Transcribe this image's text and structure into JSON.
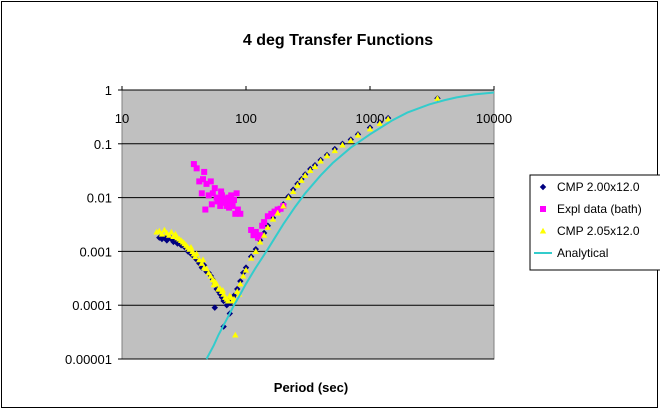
{
  "chart_data": {
    "type": "scatter",
    "title": "4 deg Transfer Functions",
    "xlabel": "Period (sec)",
    "ylabel": "",
    "x_scale": "log",
    "y_scale": "log",
    "xlim": [
      10,
      10000
    ],
    "ylim": [
      1e-05,
      1
    ],
    "x_ticks": [
      "10",
      "100",
      "1000",
      "10000"
    ],
    "y_ticks": [
      "1",
      "0.1",
      "0.01",
      "0.001",
      "0.0001",
      "0.00001"
    ],
    "grid": "horizontal major",
    "legend_position": "right",
    "colors": {
      "plot_background": "#c0c0c0",
      "grid": "#000000",
      "series_cmp_200": "#000080",
      "series_expl": "#ff00ff",
      "series_cmp_205": "#ffff00",
      "series_analytical": "#33cccc"
    },
    "series": [
      {
        "name": "CMP 2.00x12.0",
        "marker": "diamond",
        "color": "#000080",
        "x": [
          20,
          21,
          22,
          23,
          24,
          25,
          26,
          27,
          28,
          29,
          30,
          32,
          34,
          36,
          38,
          40,
          42,
          44,
          46,
          48,
          50,
          52,
          54,
          56,
          58,
          60,
          62,
          64,
          66,
          68,
          70,
          72,
          75,
          78,
          80,
          85,
          90,
          95,
          100,
          110,
          120,
          130,
          140,
          150,
          165,
          180,
          200,
          220,
          240,
          260,
          280,
          300,
          330,
          360,
          400,
          450,
          520,
          600,
          700,
          800,
          1000,
          1200,
          1400,
          3500,
          66,
          74,
          56
        ],
        "y": [
          0.0018,
          0.0017,
          0.0018,
          0.0016,
          0.0019,
          0.0017,
          0.0015,
          0.0016,
          0.0014,
          0.0015,
          0.0013,
          0.0012,
          0.001,
          0.0009,
          0.0008,
          0.0007,
          0.0006,
          0.0005,
          0.00055,
          0.00042,
          0.0004,
          0.00035,
          0.0003,
          0.00025,
          0.0002,
          0.00018,
          0.00016,
          0.00014,
          0.00012,
          0.00013,
          0.0001,
          0.00012,
          0.00011,
          0.00014,
          0.00015,
          0.0002,
          0.00028,
          0.0004,
          0.0005,
          0.0008,
          0.0011,
          0.0016,
          0.0022,
          0.003,
          0.0042,
          0.0055,
          0.0075,
          0.0105,
          0.014,
          0.018,
          0.022,
          0.027,
          0.034,
          0.04,
          0.05,
          0.062,
          0.08,
          0.1,
          0.12,
          0.15,
          0.2,
          0.25,
          0.3,
          0.7,
          4e-05,
          7e-05,
          9e-05
        ]
      },
      {
        "name": "Expl data (bath)",
        "marker": "square",
        "color": "#ff00ff",
        "x": [
          38,
          40,
          42,
          44,
          45,
          46,
          48,
          50,
          52,
          54,
          56,
          58,
          60,
          62,
          64,
          66,
          68,
          70,
          72,
          74,
          76,
          78,
          80,
          82,
          84,
          86,
          90,
          110,
          115,
          120,
          125,
          130,
          135,
          140,
          150,
          160,
          170,
          180,
          190,
          200,
          47,
          53,
          59,
          63,
          67,
          73
        ],
        "y": [
          0.042,
          0.035,
          0.02,
          0.012,
          0.022,
          0.03,
          0.018,
          0.011,
          0.02,
          0.012,
          0.015,
          0.01,
          0.009,
          0.007,
          0.011,
          0.008,
          0.009,
          0.007,
          0.01,
          0.008,
          0.011,
          0.007,
          0.009,
          0.005,
          0.012,
          0.006,
          0.005,
          0.0025,
          0.002,
          0.0023,
          0.0018,
          0.002,
          0.003,
          0.0035,
          0.0045,
          0.005,
          0.0055,
          0.006,
          0.0062,
          0.007,
          0.006,
          0.0075,
          0.0085,
          0.013,
          0.0095,
          0.0065
        ]
      },
      {
        "name": "CMP 2.05x12.0",
        "marker": "triangle",
        "color": "#ffff00",
        "x": [
          19,
          20,
          21,
          22,
          23,
          24,
          25,
          26,
          27,
          28,
          29,
          30,
          31,
          32,
          33,
          34,
          35,
          36,
          37,
          38,
          39,
          40,
          42,
          44,
          46,
          48,
          50,
          52,
          54,
          56,
          58,
          60,
          62,
          64,
          66,
          68,
          70,
          72,
          74,
          76,
          78,
          80,
          85,
          90,
          95,
          100,
          110,
          120,
          130,
          140,
          150,
          165,
          180,
          200,
          220,
          240,
          260,
          280,
          300,
          330,
          360,
          400,
          450,
          520,
          600,
          700,
          800,
          1000,
          1200,
          1400,
          3500,
          82,
          88,
          45,
          55,
          65
        ],
        "y": [
          0.0023,
          0.0024,
          0.0021,
          0.0025,
          0.0022,
          0.002,
          0.0023,
          0.0019,
          0.0021,
          0.0018,
          0.0017,
          0.0016,
          0.0015,
          0.0014,
          0.0013,
          0.0012,
          0.0011,
          0.0012,
          0.001,
          0.0009,
          0.0008,
          0.0009,
          0.0007,
          0.0006,
          0.0005,
          0.00048,
          0.0004,
          0.00035,
          0.0003,
          0.00028,
          0.00025,
          0.0002,
          0.0002,
          0.00018,
          0.00016,
          0.00014,
          0.00013,
          0.00012,
          0.00015,
          0.00014,
          0.00012,
          0.00013,
          0.00018,
          0.00025,
          0.00035,
          0.00045,
          0.00075,
          0.001,
          0.0015,
          0.002,
          0.0028,
          0.004,
          0.0052,
          0.007,
          0.01,
          0.013,
          0.017,
          0.021,
          0.026,
          0.032,
          0.038,
          0.048,
          0.06,
          0.075,
          0.095,
          0.115,
          0.145,
          0.19,
          0.24,
          0.29,
          0.7,
          2.8e-05,
          0.00016,
          0.0007,
          0.00024,
          0.00019
        ]
      },
      {
        "name": "Analytical",
        "marker": "line",
        "color": "#33cccc",
        "x": [
          48,
          55,
          60,
          70,
          80,
          90,
          100,
          120,
          150,
          200,
          250,
          300,
          400,
          500,
          700,
          1000,
          1500,
          2000,
          3000,
          4000,
          5000,
          7000,
          10000
        ],
        "y": [
          1e-05,
          1.8e-05,
          2.8e-05,
          5.5e-05,
          0.0001,
          0.00016,
          0.00025,
          0.0005,
          0.0011,
          0.0032,
          0.0068,
          0.012,
          0.026,
          0.044,
          0.085,
          0.15,
          0.27,
          0.38,
          0.54,
          0.65,
          0.73,
          0.83,
          0.9
        ]
      }
    ]
  }
}
